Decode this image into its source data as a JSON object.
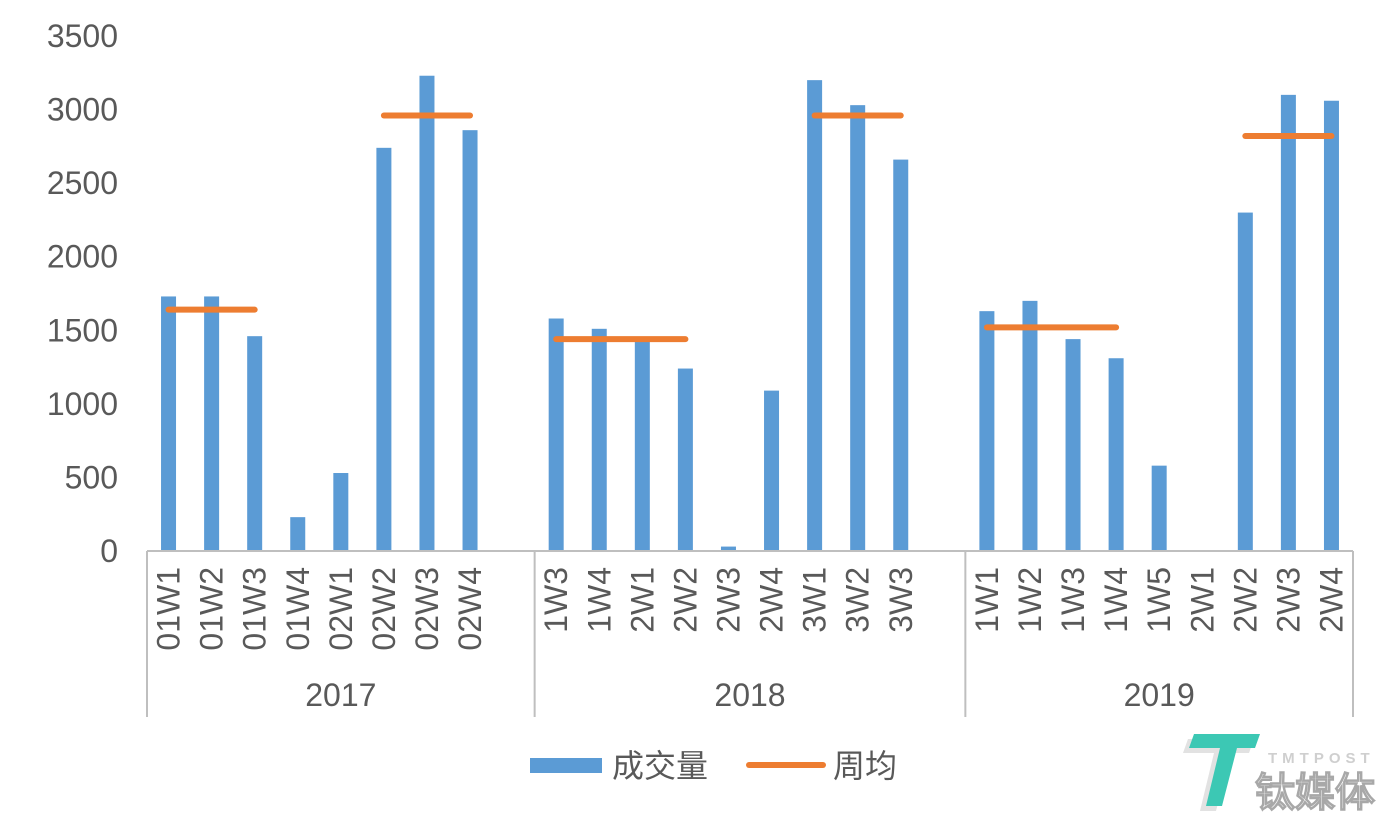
{
  "chart_data": {
    "type": "bar",
    "ylim": [
      0,
      3500
    ],
    "yticks": [
      0,
      500,
      1000,
      1500,
      2000,
      2500,
      3000,
      3500
    ],
    "grid": false,
    "legend": "bottom-center",
    "groups": [
      {
        "label": "2017",
        "categories": [
          "01W1",
          "01W2",
          "01W3",
          "01W4",
          "02W1",
          "02W2",
          "02W3",
          "02W4",
          ""
        ]
      },
      {
        "label": "2018",
        "categories": [
          "1W3",
          "1W4",
          "2W1",
          "2W2",
          "2W3",
          "2W4",
          "3W1",
          "3W2",
          "3W3",
          ""
        ]
      },
      {
        "label": "2019",
        "categories": [
          "1W1",
          "1W2",
          "1W3",
          "1W4",
          "1W5",
          "2W1",
          "2W2",
          "2W3",
          "2W4"
        ]
      }
    ],
    "series": [
      {
        "name": "成交量",
        "type": "bar",
        "color": "#5B9BD5",
        "values": [
          1730,
          1730,
          1460,
          230,
          530,
          2740,
          3230,
          2860,
          null,
          1580,
          1510,
          1430,
          1240,
          30,
          1090,
          3200,
          3030,
          2660,
          null,
          1630,
          1700,
          1440,
          1310,
          580,
          null,
          2300,
          3100,
          3060
        ]
      },
      {
        "name": "周均",
        "type": "segment",
        "color": "#ED7D31",
        "values": [
          1640,
          1640,
          1640,
          null,
          null,
          2960,
          2960,
          2960,
          null,
          1440,
          1440,
          1440,
          1440,
          null,
          null,
          2960,
          2960,
          2960,
          null,
          1520,
          1520,
          1520,
          1520,
          null,
          null,
          2820,
          2820,
          2820
        ]
      }
    ]
  },
  "watermark": {
    "brand_en": "TMTPOST",
    "brand_cn": "钛媒体",
    "logo_color": "#3CC8B4"
  }
}
